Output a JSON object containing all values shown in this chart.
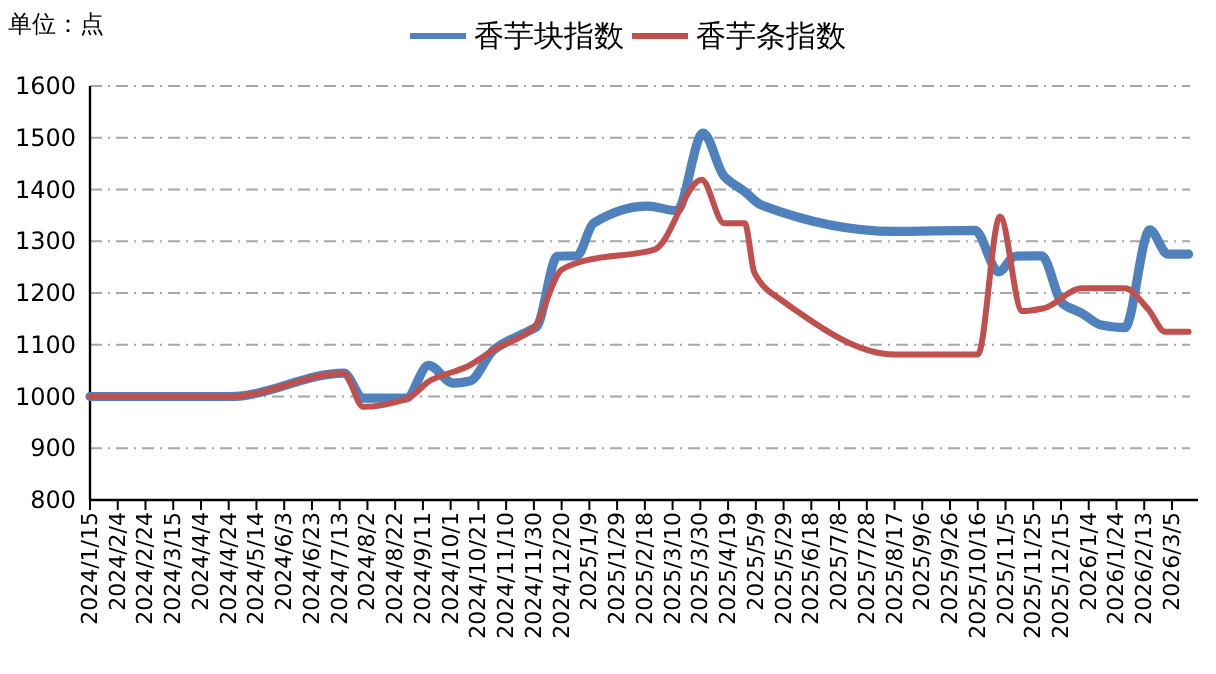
{
  "chart_data": {
    "type": "line",
    "annotations": [
      "单位：点"
    ],
    "xlim": [
      "2024-01-15",
      "2026-03-18"
    ],
    "xticks": [
      {
        "value": "2024-01-15",
        "label": "2024/1/15"
      },
      {
        "value": "2024-02-04",
        "label": "2024/2/4"
      },
      {
        "value": "2024-02-24",
        "label": "2024/2/24"
      },
      {
        "value": "2024-03-15",
        "label": "2024/3/15"
      },
      {
        "value": "2024-04-04",
        "label": "2024/4/4"
      },
      {
        "value": "2024-04-24",
        "label": "2024/4/24"
      },
      {
        "value": "2024-05-14",
        "label": "2024/5/14"
      },
      {
        "value": "2024-06-03",
        "label": "2024/6/3"
      },
      {
        "value": "2024-06-23",
        "label": "2024/6/23"
      },
      {
        "value": "2024-07-13",
        "label": "2024/7/13"
      },
      {
        "value": "2024-08-02",
        "label": "2024/8/2"
      },
      {
        "value": "2024-08-22",
        "label": "2024/8/22"
      },
      {
        "value": "2024-09-11",
        "label": "2024/9/11"
      },
      {
        "value": "2024-10-01",
        "label": "2024/10/1"
      },
      {
        "value": "2024-10-21",
        "label": "2024/10/21"
      },
      {
        "value": "2024-11-10",
        "label": "2024/11/10"
      },
      {
        "value": "2024-11-30",
        "label": "2024/11/30"
      },
      {
        "value": "2024-12-20",
        "label": "2024/12/20"
      },
      {
        "value": "2025-01-09",
        "label": "2025/1/9"
      },
      {
        "value": "2025-01-29",
        "label": "2025/1/29"
      },
      {
        "value": "2025-02-18",
        "label": "2025/2/18"
      },
      {
        "value": "2025-03-10",
        "label": "2025/3/10"
      },
      {
        "value": "2025-03-30",
        "label": "2025/3/30"
      },
      {
        "value": "2025-04-19",
        "label": "2025/4/19"
      },
      {
        "value": "2025-05-09",
        "label": "2025/5/9"
      },
      {
        "value": "2025-05-29",
        "label": "2025/5/29"
      },
      {
        "value": "2025-06-18",
        "label": "2025/6/18"
      },
      {
        "value": "2025-07-08",
        "label": "2025/7/8"
      },
      {
        "value": "2025-07-28",
        "label": "2025/7/28"
      },
      {
        "value": "2025-08-17",
        "label": "2025/8/17"
      },
      {
        "value": "2025-09-06",
        "label": "2025/9/6"
      },
      {
        "value": "2025-09-26",
        "label": "2025/9/26"
      },
      {
        "value": "2025-10-16",
        "label": "2025/10/16"
      },
      {
        "value": "2025-11-05",
        "label": "2025/11/5"
      },
      {
        "value": "2025-11-25",
        "label": "2025/11/25"
      },
      {
        "value": "2025-12-15",
        "label": "2025/12/15"
      },
      {
        "value": "2026-01-04",
        "label": "2026/1/4"
      },
      {
        "value": "2026-01-24",
        "label": "2026/1/24"
      },
      {
        "value": "2026-02-13",
        "label": "2026/2/13"
      },
      {
        "value": "2026-03-05",
        "label": "2026/3/5"
      }
    ],
    "ylim": [
      800,
      1600
    ],
    "yticks": [
      800,
      900,
      1000,
      1100,
      1200,
      1300,
      1400,
      1500,
      1600
    ],
    "grid": "y",
    "legend": "top",
    "line_style": "solid",
    "series": [
      {
        "name": "香芋块指数",
        "color": "#4f81bd",
        "x": [
          "2024-01-15",
          "2024-04-25",
          "2024-07-16",
          "2024-07-30",
          "2024-08-30",
          "2024-09-15",
          "2024-10-03",
          "2024-10-15",
          "2024-11-01",
          "2024-11-28",
          "2024-12-02",
          "2024-12-17",
          "2024-12-31",
          "2025-01-12",
          "2025-02-20",
          "2025-03-13",
          "2025-04-01",
          "2025-04-16",
          "2025-05-01",
          "2025-05-13",
          "2025-08-17",
          "2025-10-14",
          "2025-10-31",
          "2025-11-12",
          "2025-12-01",
          "2025-12-16",
          "2025-12-30",
          "2026-01-13",
          "2026-01-30",
          "2026-02-17",
          "2026-03-02",
          "2026-03-17"
        ],
        "values": [
          1000,
          1000,
          1045,
          997,
          997,
          1060,
          1026,
          1030,
          1090,
          1129,
          1135,
          1271,
          1272,
          1335,
          1368,
          1359,
          1509,
          1426,
          1396,
          1370,
          1319,
          1321,
          1241,
          1271,
          1272,
          1180,
          1161,
          1138,
          1133,
          1322,
          1275,
          1275
        ]
      },
      {
        "name": "香芋条指数",
        "color": "#c0504d",
        "x": [
          "2024-01-15",
          "2024-04-25",
          "2024-07-16",
          "2024-07-30",
          "2024-08-30",
          "2024-09-17",
          "2024-10-13",
          "2024-11-01",
          "2024-11-30",
          "2024-12-20",
          "2025-01-08",
          "2025-02-25",
          "2025-03-31",
          "2025-04-16",
          "2025-05-01",
          "2025-05-08",
          "2025-05-27",
          "2025-08-17",
          "2025-10-16",
          "2025-11-01",
          "2025-11-17",
          "2025-12-02",
          "2025-12-30",
          "2026-01-30",
          "2026-02-16",
          "2026-02-28",
          "2026-03-17"
        ],
        "values": [
          1000,
          1000,
          1045,
          980,
          995,
          1032,
          1058,
          1090,
          1133,
          1245,
          1264,
          1284,
          1419,
          1335,
          1335,
          1239,
          1187,
          1081,
          1081,
          1348,
          1165,
          1170,
          1209,
          1209,
          1168,
          1125,
          1125
        ]
      }
    ]
  }
}
